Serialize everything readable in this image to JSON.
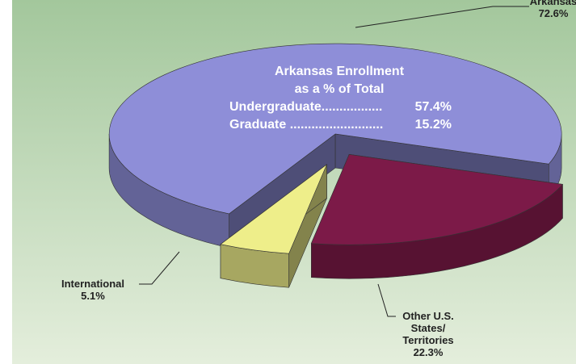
{
  "chart_data": {
    "type": "pie",
    "categories": [
      "Arkansas",
      "Other U.S.\nStates/\nTerritories",
      "International"
    ],
    "values": [
      72.6,
      22.3,
      5.1
    ],
    "value_labels": [
      "72.6%",
      "22.3%",
      "5.1%"
    ],
    "colors": [
      "#8e8ed8",
      "#7c1a48",
      "#eeee8a"
    ],
    "annotation": {
      "title": [
        "Arkansas Enrollment",
        "as a % of Total"
      ],
      "items": [
        {
          "label": "Undergraduate.................",
          "value": 57.4,
          "value_label": "57.4%"
        },
        {
          "label": "Graduate ..........................",
          "value": 15.2,
          "value_label": "15.2%"
        }
      ]
    }
  }
}
